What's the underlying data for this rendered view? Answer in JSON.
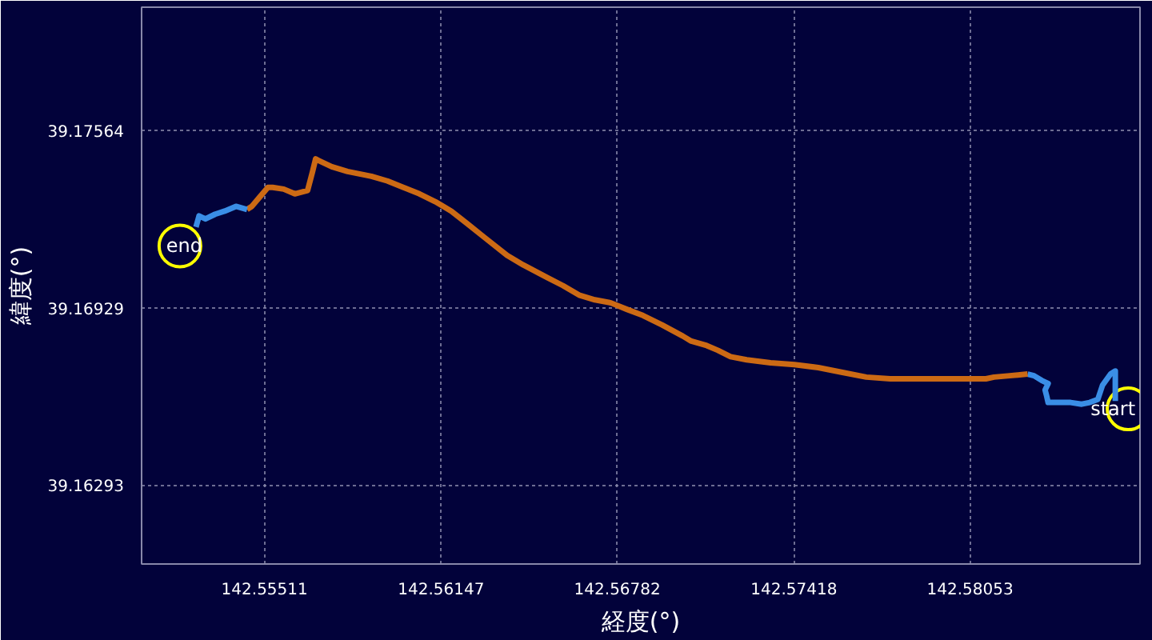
{
  "chart_data": {
    "type": "line",
    "xlabel": "経度(°)",
    "ylabel": "緯度(°)",
    "xlim": [
      142.55068,
      142.58665
    ],
    "ylim": [
      39.1601,
      39.18006
    ],
    "xticks": [
      142.55511,
      142.56147,
      142.56782,
      142.57418,
      142.58053
    ],
    "yticks": [
      39.16293,
      39.16929,
      39.17564
    ],
    "grid": true,
    "series": [
      {
        "color": "#3a8ee6",
        "x": [
          142.58576,
          142.58576,
          142.58559,
          142.5853,
          142.58513,
          142.58484,
          142.58455,
          142.58415,
          142.5838,
          142.58334,
          142.58329,
          142.58323,
          142.58334,
          142.58311,
          142.58283,
          142.5826
        ],
        "values": [
          39.16594,
          39.16702,
          39.16691,
          39.16651,
          39.166,
          39.16589,
          39.16583,
          39.16589,
          39.16589,
          39.16589,
          39.16611,
          39.16634,
          39.16657,
          39.16668,
          39.16685,
          39.16691
        ]
      },
      {
        "color": "#cc6a14",
        "x": [
          142.5826,
          142.58196,
          142.58139,
          142.5811,
          142.58024,
          142.57938,
          142.57851,
          142.57765,
          142.57679,
          142.57593,
          142.57506,
          142.5742,
          142.57334,
          142.57248,
          142.5719,
          142.57144,
          142.57104,
          142.57046,
          142.57018,
          142.56943,
          142.56874,
          142.56816,
          142.56759,
          142.56701,
          142.56644,
          142.56586,
          142.56529,
          142.56443,
          142.56385,
          142.56299,
          142.56241,
          142.56184,
          142.56126,
          142.56069,
          142.56011,
          142.55954,
          142.55896,
          142.5581,
          142.55753,
          142.55707,
          142.55695,
          142.55684,
          142.55666,
          142.5562,
          142.5558,
          142.5554,
          142.55523,
          142.55494,
          142.55465,
          142.55448
        ],
        "values": [
          39.16691,
          39.16685,
          39.1668,
          39.16674,
          39.16674,
          39.16674,
          39.16674,
          39.16674,
          39.1668,
          39.16697,
          39.16714,
          39.16725,
          39.16731,
          39.16742,
          39.16753,
          39.16776,
          39.16793,
          39.1681,
          39.16827,
          39.16867,
          39.16901,
          39.16923,
          39.16946,
          39.16957,
          39.16974,
          39.17008,
          39.17037,
          39.17082,
          39.17116,
          39.17184,
          39.1723,
          39.17275,
          39.17309,
          39.17337,
          39.1736,
          39.17383,
          39.174,
          39.17417,
          39.17434,
          39.17456,
          39.17462,
          39.17417,
          39.17349,
          39.17337,
          39.17354,
          39.1736,
          39.1736,
          39.17326,
          39.17292,
          39.17281
        ]
      },
      {
        "color": "#3a8ee6",
        "x": [
          142.55448,
          142.55408,
          142.55367,
          142.55333,
          142.55298,
          142.55275,
          142.55264
        ],
        "values": [
          39.17281,
          39.17292,
          39.17275,
          39.17264,
          39.17247,
          39.17258,
          39.17218
        ]
      }
    ],
    "annotations": [
      {
        "text": "start",
        "x": 142.58622,
        "y": 39.16566
      },
      {
        "text": "end",
        "x": 142.55206,
        "y": 39.1715
      }
    ]
  }
}
